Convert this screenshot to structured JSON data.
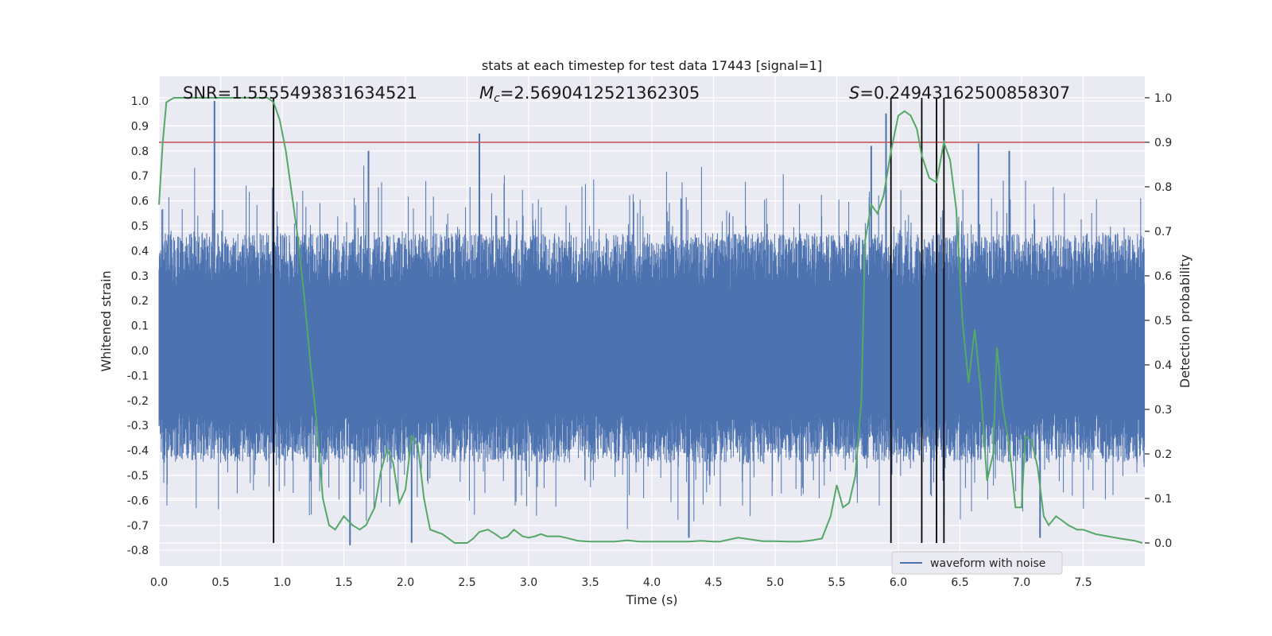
{
  "chart_data": {
    "type": "line",
    "title": "stats at each timestep for test data 17443 [signal=1]",
    "xlabel": "Time (s)",
    "ylabel_left": "Whitened strain",
    "ylabel_right": "Detection probability",
    "xlim": [
      0,
      8
    ],
    "ylim_left": [
      -0.85,
      1.08
    ],
    "ylim_right": [
      -0.05,
      1.05
    ],
    "x_ticks": [
      "0.0",
      "0.5",
      "1.0",
      "1.5",
      "2.0",
      "2.5",
      "3.0",
      "3.5",
      "4.0",
      "4.5",
      "5.0",
      "5.5",
      "6.0",
      "6.5",
      "7.0",
      "7.5"
    ],
    "y_left_ticks": [
      "-0.8",
      "-0.7",
      "-0.6",
      "-0.5",
      "-0.4",
      "-0.3",
      "-0.2",
      "-0.1",
      "0.0",
      "0.1",
      "0.2",
      "0.3",
      "0.4",
      "0.5",
      "0.6",
      "0.7",
      "0.8",
      "0.9",
      "1.0"
    ],
    "y_right_ticks": [
      "0.0",
      "0.1",
      "0.2",
      "0.3",
      "0.4",
      "0.5",
      "0.6",
      "0.7",
      "0.8",
      "0.9",
      "1.0"
    ],
    "annotations": {
      "snr": "SNR=1.5555493831634521",
      "mc_symbol": "M",
      "mc_sub": "c",
      "mc_value": "=2.5690412521362305",
      "s_symbol": "S",
      "s_value": "=0.24943162500858307"
    },
    "legend": {
      "label": "waveform with noise",
      "position": "lower-right"
    },
    "threshold": {
      "probability": 0.9,
      "color": "#c44e52"
    },
    "event_markers_time": [
      0.93,
      5.94,
      6.19,
      6.31,
      6.37
    ],
    "waveform": {
      "name": "waveform with noise",
      "color": "#4c72b0",
      "notable_spikes": [
        {
          "t": 0.45,
          "v": 1.0
        },
        {
          "t": 2.6,
          "v": 0.87
        },
        {
          "t": 5.78,
          "v": 0.82
        },
        {
          "t": 5.9,
          "v": 0.95
        },
        {
          "t": 6.65,
          "v": 0.83
        },
        {
          "t": 6.9,
          "v": 0.8
        },
        {
          "t": 1.7,
          "v": 0.8
        },
        {
          "t": 1.55,
          "v": -0.78
        },
        {
          "t": 2.05,
          "v": -0.77
        },
        {
          "t": 4.3,
          "v": -0.75
        },
        {
          "t": 7.15,
          "v": -0.75
        }
      ]
    },
    "probability": {
      "color": "#55a868",
      "t": [
        0.0,
        0.03,
        0.06,
        0.12,
        0.2,
        0.3,
        0.4,
        0.5,
        0.6,
        0.7,
        0.8,
        0.88,
        0.93,
        0.98,
        1.03,
        1.08,
        1.13,
        1.18,
        1.23,
        1.28,
        1.33,
        1.38,
        1.43,
        1.5,
        1.57,
        1.63,
        1.68,
        1.75,
        1.8,
        1.85,
        1.9,
        1.95,
        2.0,
        2.05,
        2.1,
        2.15,
        2.2,
        2.25,
        2.3,
        2.35,
        2.4,
        2.45,
        2.5,
        2.55,
        2.6,
        2.67,
        2.73,
        2.78,
        2.83,
        2.88,
        2.95,
        3.0,
        3.05,
        3.1,
        3.15,
        3.25,
        3.3,
        3.4,
        3.5,
        3.6,
        3.7,
        3.8,
        3.9,
        4.0,
        4.1,
        4.2,
        4.3,
        4.4,
        4.5,
        4.55,
        4.6,
        4.7,
        4.8,
        4.9,
        5.0,
        5.1,
        5.2,
        5.3,
        5.38,
        5.45,
        5.5,
        5.55,
        5.6,
        5.65,
        5.7,
        5.73,
        5.78,
        5.83,
        5.88,
        5.94,
        6.0,
        6.05,
        6.1,
        6.15,
        6.19,
        6.25,
        6.31,
        6.37,
        6.42,
        6.47,
        6.52,
        6.57,
        6.62,
        6.67,
        6.72,
        6.77,
        6.8,
        6.85,
        6.9,
        6.95,
        7.0,
        7.03,
        7.08,
        7.13,
        7.18,
        7.22,
        7.28,
        7.33,
        7.38,
        7.45,
        7.5,
        7.6,
        7.7,
        7.8,
        7.92,
        7.98
      ],
      "p": [
        0.76,
        0.9,
        0.99,
        1.0,
        1.0,
        1.0,
        1.0,
        1.0,
        1.0,
        1.0,
        1.0,
        1.0,
        0.99,
        0.95,
        0.88,
        0.78,
        0.68,
        0.55,
        0.4,
        0.27,
        0.1,
        0.04,
        0.03,
        0.06,
        0.04,
        0.03,
        0.04,
        0.08,
        0.16,
        0.21,
        0.18,
        0.09,
        0.12,
        0.24,
        0.22,
        0.1,
        0.03,
        0.025,
        0.02,
        0.01,
        0.0,
        0.0,
        0.0,
        0.01,
        0.025,
        0.03,
        0.02,
        0.01,
        0.015,
        0.03,
        0.015,
        0.012,
        0.015,
        0.02,
        0.015,
        0.015,
        0.012,
        0.005,
        0.003,
        0.003,
        0.003,
        0.006,
        0.003,
        0.003,
        0.003,
        0.003,
        0.003,
        0.005,
        0.003,
        0.003,
        0.006,
        0.012,
        0.008,
        0.004,
        0.004,
        0.003,
        0.003,
        0.006,
        0.01,
        0.06,
        0.13,
        0.08,
        0.09,
        0.15,
        0.32,
        0.68,
        0.76,
        0.74,
        0.78,
        0.88,
        0.96,
        0.97,
        0.96,
        0.93,
        0.87,
        0.82,
        0.81,
        0.9,
        0.86,
        0.75,
        0.5,
        0.36,
        0.48,
        0.34,
        0.14,
        0.2,
        0.44,
        0.3,
        0.22,
        0.08,
        0.08,
        0.24,
        0.23,
        0.17,
        0.06,
        0.04,
        0.06,
        0.05,
        0.04,
        0.03,
        0.03,
        0.02,
        0.015,
        0.01,
        0.005,
        0.0
      ]
    }
  }
}
